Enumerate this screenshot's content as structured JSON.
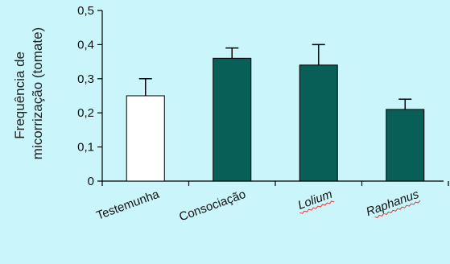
{
  "chart_data": {
    "type": "bar",
    "title": "",
    "xlabel": "",
    "ylabel_lines": [
      "Frequência de",
      "micorrização (tomate)"
    ],
    "categories": [
      "Testemunha",
      "Consociação",
      "Lolium",
      "Raphanus"
    ],
    "category_italic": [
      false,
      false,
      true,
      true
    ],
    "category_spellcheck_underline": [
      false,
      false,
      true,
      true
    ],
    "values": [
      0.25,
      0.36,
      0.34,
      0.21
    ],
    "error_upper": [
      0.3,
      0.39,
      0.4,
      0.24
    ],
    "ylim": [
      0,
      0.5
    ],
    "yticks": [
      0,
      0.1,
      0.2,
      0.3,
      0.4,
      0.5
    ],
    "ytick_labels": [
      "0",
      "0,1",
      "0,2",
      "0,3",
      "0,4",
      "0,5"
    ],
    "bar_colors": [
      "#ffffff",
      "#075f58",
      "#075f58",
      "#075f58"
    ],
    "bar_edge_color": "#000000",
    "background_color": "#c9f5fb",
    "grid": false,
    "legend": "none",
    "error_bars": "upper-only"
  }
}
